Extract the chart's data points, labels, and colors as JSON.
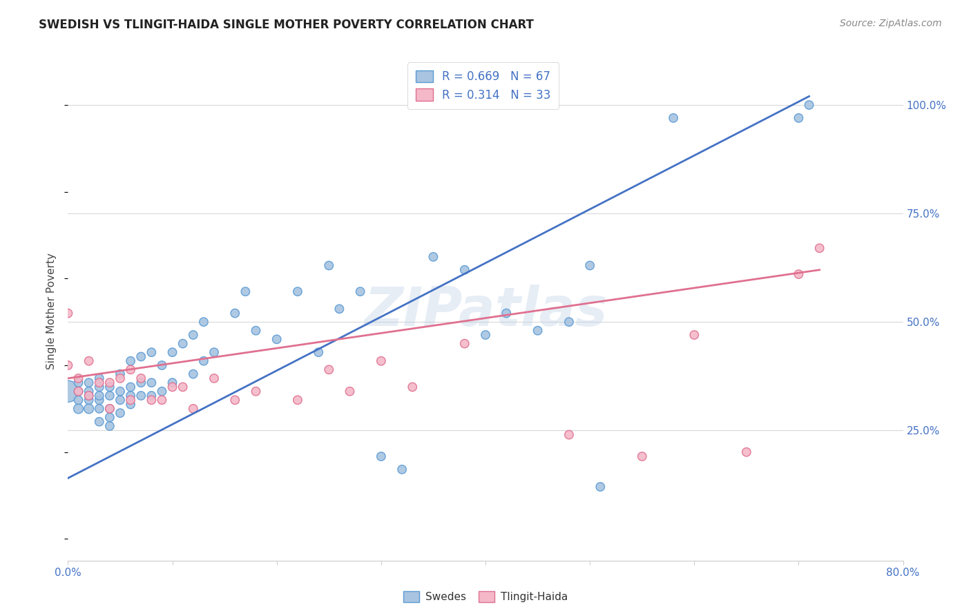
{
  "title": "SWEDISH VS TLINGIT-HAIDA SINGLE MOTHER POVERTY CORRELATION CHART",
  "source": "Source: ZipAtlas.com",
  "ylabel": "Single Mother Poverty",
  "yticks": [
    "25.0%",
    "50.0%",
    "75.0%",
    "100.0%"
  ],
  "ytick_vals": [
    0.25,
    0.5,
    0.75,
    1.0
  ],
  "xlim": [
    0.0,
    0.8
  ],
  "ylim": [
    -0.05,
    1.1
  ],
  "legend_blue_label": "R = 0.669   N = 67",
  "legend_pink_label": "R = 0.314   N = 33",
  "bottom_legend_swedes": "Swedes",
  "bottom_legend_tlingit": "Tlingit-Haida",
  "watermark": "ZIPatlas",
  "title_color": "#222222",
  "source_color": "#888888",
  "axis_label_color": "#4472c4",
  "ytick_color": "#4472c4",
  "legend_text_color": "#4472c4",
  "blue_scatter_color": "#a8c4e0",
  "blue_scatter_edge": "#5b9bd5",
  "pink_scatter_color": "#f4b8c8",
  "pink_scatter_edge": "#e07090",
  "blue_line_color": "#4472c4",
  "pink_line_color": "#e07090",
  "grid_color": "#d8d8d8",
  "background_color": "#ffffff",
  "swedes_x": [
    0.0,
    0.01,
    0.01,
    0.01,
    0.01,
    0.02,
    0.02,
    0.02,
    0.02,
    0.02,
    0.03,
    0.03,
    0.03,
    0.03,
    0.03,
    0.03,
    0.04,
    0.04,
    0.04,
    0.04,
    0.04,
    0.05,
    0.05,
    0.05,
    0.05,
    0.06,
    0.06,
    0.06,
    0.06,
    0.07,
    0.07,
    0.07,
    0.08,
    0.08,
    0.08,
    0.09,
    0.09,
    0.1,
    0.1,
    0.11,
    0.12,
    0.12,
    0.13,
    0.13,
    0.14,
    0.16,
    0.17,
    0.18,
    0.2,
    0.22,
    0.24,
    0.25,
    0.26,
    0.28,
    0.3,
    0.32,
    0.35,
    0.38,
    0.4,
    0.42,
    0.45,
    0.48,
    0.5,
    0.51,
    0.58,
    0.7,
    0.71
  ],
  "swedes_y": [
    0.34,
    0.3,
    0.32,
    0.34,
    0.36,
    0.3,
    0.32,
    0.33,
    0.34,
    0.36,
    0.27,
    0.3,
    0.32,
    0.33,
    0.35,
    0.37,
    0.26,
    0.28,
    0.3,
    0.33,
    0.35,
    0.29,
    0.32,
    0.34,
    0.38,
    0.31,
    0.33,
    0.35,
    0.41,
    0.33,
    0.36,
    0.42,
    0.33,
    0.36,
    0.43,
    0.34,
    0.4,
    0.36,
    0.43,
    0.45,
    0.38,
    0.47,
    0.41,
    0.5,
    0.43,
    0.52,
    0.57,
    0.48,
    0.46,
    0.57,
    0.43,
    0.63,
    0.53,
    0.57,
    0.19,
    0.16,
    0.65,
    0.62,
    0.47,
    0.52,
    0.48,
    0.5,
    0.63,
    0.12,
    0.97,
    0.97,
    1.0
  ],
  "swedes_size": [
    500,
    100,
    80,
    80,
    80,
    100,
    80,
    80,
    80,
    80,
    80,
    80,
    80,
    80,
    80,
    80,
    80,
    80,
    80,
    80,
    80,
    80,
    80,
    80,
    80,
    80,
    80,
    80,
    80,
    80,
    80,
    80,
    80,
    80,
    80,
    80,
    80,
    80,
    80,
    80,
    80,
    80,
    80,
    80,
    80,
    80,
    80,
    80,
    80,
    80,
    80,
    80,
    80,
    80,
    80,
    80,
    80,
    80,
    80,
    80,
    80,
    80,
    80,
    80,
    80,
    80,
    80
  ],
  "tlingit_x": [
    0.0,
    0.0,
    0.01,
    0.01,
    0.02,
    0.02,
    0.03,
    0.04,
    0.04,
    0.05,
    0.06,
    0.06,
    0.07,
    0.08,
    0.09,
    0.1,
    0.11,
    0.12,
    0.14,
    0.16,
    0.18,
    0.22,
    0.25,
    0.27,
    0.3,
    0.33,
    0.38,
    0.48,
    0.55,
    0.6,
    0.65,
    0.7,
    0.72
  ],
  "tlingit_y": [
    0.4,
    0.52,
    0.34,
    0.37,
    0.33,
    0.41,
    0.36,
    0.3,
    0.36,
    0.37,
    0.39,
    0.32,
    0.37,
    0.32,
    0.32,
    0.35,
    0.35,
    0.3,
    0.37,
    0.32,
    0.34,
    0.32,
    0.39,
    0.34,
    0.41,
    0.35,
    0.45,
    0.24,
    0.19,
    0.47,
    0.2,
    0.61,
    0.67
  ],
  "tlingit_size": [
    80,
    80,
    80,
    80,
    80,
    80,
    80,
    80,
    80,
    80,
    80,
    80,
    80,
    80,
    80,
    80,
    80,
    80,
    80,
    80,
    80,
    80,
    80,
    80,
    80,
    80,
    80,
    80,
    80,
    80,
    80,
    80,
    80
  ],
  "blue_line_x": [
    0.0,
    0.71
  ],
  "blue_line_y": [
    0.14,
    1.02
  ],
  "pink_line_x": [
    0.0,
    0.72
  ],
  "pink_line_y": [
    0.37,
    0.62
  ]
}
